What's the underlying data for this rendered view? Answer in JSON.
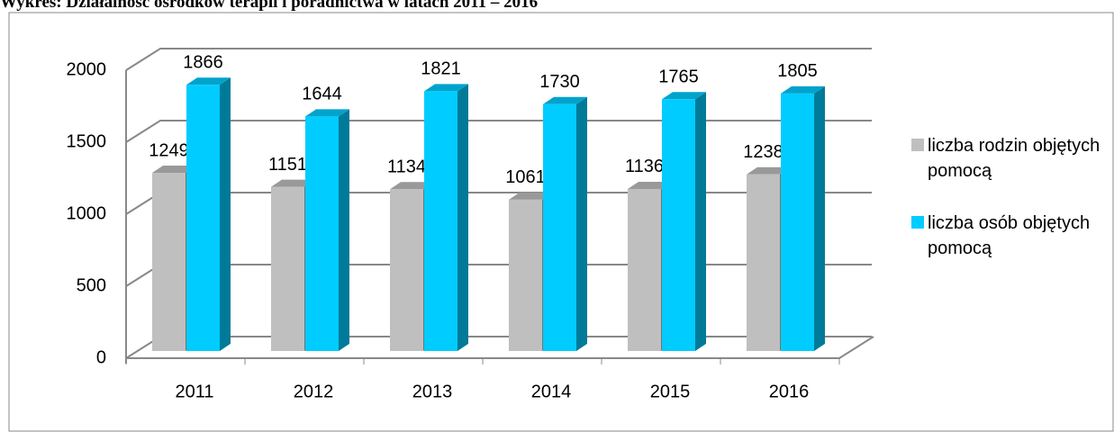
{
  "chart_data": {
    "type": "bar3d",
    "title": "Wykres: Działalność ośrodków terapii i poradnictwa w latach 2011 – 2016",
    "categories": [
      "2011",
      "2012",
      "2013",
      "2014",
      "2015",
      "2016"
    ],
    "series": [
      {
        "name": "liczba rodzin objętych pomocą",
        "color": "#bfbfbf",
        "values": [
          1249,
          1151,
          1134,
          1061,
          1136,
          1238
        ]
      },
      {
        "name": "liczba osób objętych pomocą",
        "color": "#00ccff",
        "values": [
          1866,
          1644,
          1821,
          1730,
          1765,
          1805
        ]
      }
    ],
    "ylim": [
      0,
      2000
    ],
    "yticks": [
      0,
      500,
      1000,
      1500,
      2000
    ],
    "grid": true,
    "legend": "right"
  }
}
